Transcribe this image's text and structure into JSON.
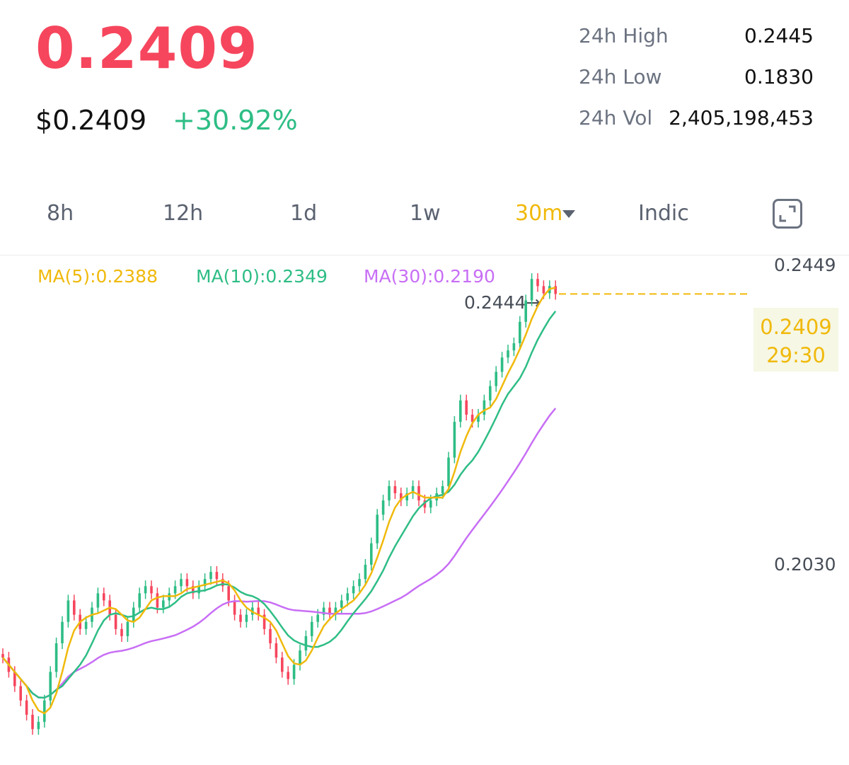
{
  "ticker": {
    "last_price": "0.2409",
    "usd_price": "$0.2409",
    "change_pct": "+30.92%"
  },
  "stats": {
    "high_label": "24h High",
    "high_value": "0.2445",
    "low_label": "24h Low",
    "low_value": "0.1830",
    "vol_label": "24h Vol",
    "vol_value": "2,405,198,453"
  },
  "tabs": [
    {
      "label": "8h"
    },
    {
      "label": "12h"
    },
    {
      "label": "1d"
    },
    {
      "label": "1w"
    },
    {
      "label": "30m",
      "active": true
    },
    {
      "label": "Indic"
    }
  ],
  "icons": {
    "fullscreen": "fullscreen-icon",
    "dropdown": "caret-down-icon"
  },
  "colors": {
    "up": "#2ebd85",
    "down": "#f6465d",
    "accent": "#f0b90b",
    "ma5": "#f0b90b",
    "ma10": "#2ebd85",
    "ma30": "#c86ef5"
  },
  "indicators": {
    "ma5": "MA(5):0.2388",
    "ma10": "MA(10):0.2349",
    "ma30": "MA(30):0.2190"
  },
  "axis": {
    "top_label": "0.2449",
    "mid_label": "0.2030"
  },
  "current_tag": {
    "price": "0.2409",
    "countdown": "29:30"
  },
  "high_marker": "0.2444→",
  "chart_data": {
    "type": "candlestick",
    "interval": "30m",
    "visible_ylabels": [
      "0.2449",
      "0.2030"
    ],
    "last": 0.2409,
    "high_marker": 0.2444,
    "closes": [
      0.19,
      0.188,
      0.186,
      0.184,
      0.182,
      0.18,
      0.181,
      0.184,
      0.188,
      0.192,
      0.195,
      0.198,
      0.196,
      0.194,
      0.195,
      0.197,
      0.199,
      0.198,
      0.196,
      0.194,
      0.193,
      0.195,
      0.197,
      0.199,
      0.2,
      0.199,
      0.197,
      0.198,
      0.199,
      0.2,
      0.201,
      0.2,
      0.199,
      0.2,
      0.201,
      0.202,
      0.201,
      0.2,
      0.198,
      0.196,
      0.195,
      0.196,
      0.197,
      0.196,
      0.194,
      0.192,
      0.19,
      0.188,
      0.187,
      0.189,
      0.191,
      0.193,
      0.195,
      0.196,
      0.197,
      0.196,
      0.197,
      0.198,
      0.199,
      0.2,
      0.201,
      0.203,
      0.206,
      0.21,
      0.212,
      0.214,
      0.213,
      0.212,
      0.213,
      0.214,
      0.212,
      0.211,
      0.212,
      0.213,
      0.214,
      0.218,
      0.223,
      0.226,
      0.224,
      0.223,
      0.224,
      0.226,
      0.228,
      0.23,
      0.232,
      0.233,
      0.234,
      0.237,
      0.24,
      0.243,
      0.242,
      0.241,
      0.242,
      0.2409
    ]
  }
}
